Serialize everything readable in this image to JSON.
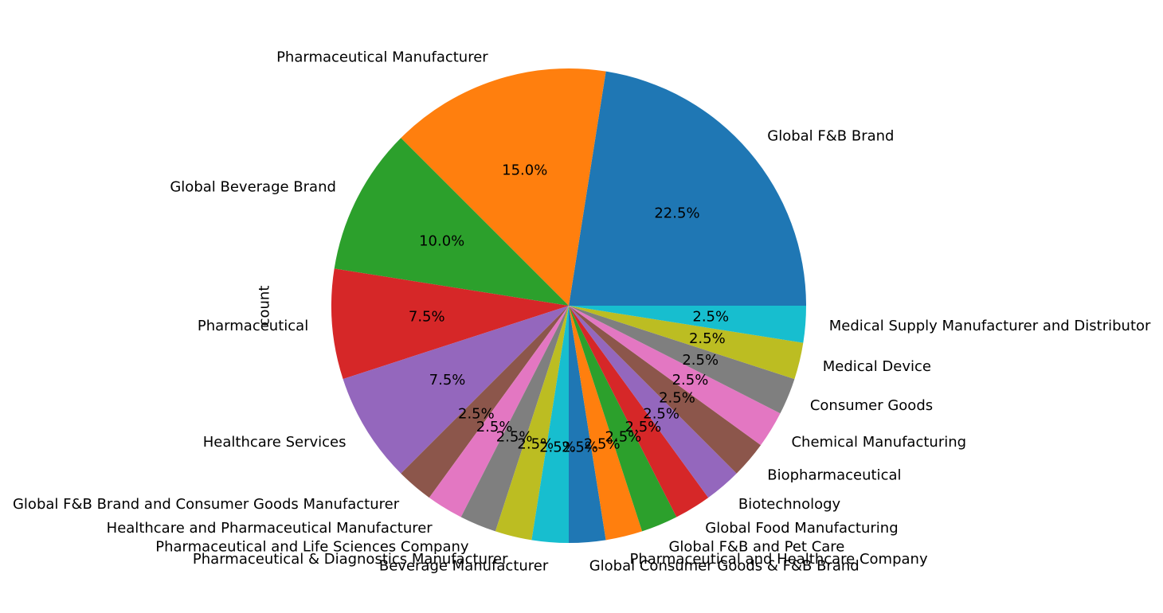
{
  "chart_data": {
    "type": "pie",
    "ylabel": "count",
    "start_angle_deg": 0,
    "direction": "counterclockwise",
    "slices": [
      {
        "label": "Global F&B Brand",
        "value": 22.5,
        "pct_text": "22.5%",
        "color": "#1f77b4"
      },
      {
        "label": "Pharmaceutical Manufacturer",
        "value": 15.0,
        "pct_text": "15.0%",
        "color": "#ff7f0e"
      },
      {
        "label": "Global Beverage Brand",
        "value": 10.0,
        "pct_text": "10.0%",
        "color": "#2ca02c"
      },
      {
        "label": "Pharmaceutical",
        "value": 7.5,
        "pct_text": "7.5%",
        "color": "#d62728"
      },
      {
        "label": "Healthcare Services",
        "value": 7.5,
        "pct_text": "7.5%",
        "color": "#9467bd"
      },
      {
        "label": "Global F&B Brand and Consumer Goods Manufacturer",
        "value": 2.5,
        "pct_text": "2.5%",
        "color": "#8c564b"
      },
      {
        "label": "Healthcare and Pharmaceutical Manufacturer",
        "value": 2.5,
        "pct_text": "2.5%",
        "color": "#e377c2"
      },
      {
        "label": "Pharmaceutical and Life Sciences Company",
        "value": 2.5,
        "pct_text": "2.5%",
        "color": "#7f7f7f"
      },
      {
        "label": "Pharmaceutical & Diagnostics Manufacturer",
        "value": 2.5,
        "pct_text": "2.5%",
        "color": "#bcbd22"
      },
      {
        "label": "Beverage Manufacturer",
        "value": 2.5,
        "pct_text": "2.5%",
        "color": "#17becf"
      },
      {
        "label": "Global Consumer Goods & F&B Brand",
        "value": 2.5,
        "pct_text": "2.5%",
        "color": "#1f77b4"
      },
      {
        "label": "Pharmaceutical and Healthcare Company",
        "value": 2.5,
        "pct_text": "2.5%",
        "color": "#ff7f0e"
      },
      {
        "label": "Global F&B and Pet Care",
        "value": 2.5,
        "pct_text": "2.5%",
        "color": "#2ca02c"
      },
      {
        "label": "Global Food Manufacturing",
        "value": 2.5,
        "pct_text": "2.5%",
        "color": "#d62728"
      },
      {
        "label": "Biotechnology",
        "value": 2.5,
        "pct_text": "2.5%",
        "color": "#9467bd"
      },
      {
        "label": "Biopharmaceutical",
        "value": 2.5,
        "pct_text": "2.5%",
        "color": "#8c564b"
      },
      {
        "label": "Chemical Manufacturing",
        "value": 2.5,
        "pct_text": "2.5%",
        "color": "#e377c2"
      },
      {
        "label": "Consumer Goods",
        "value": 2.5,
        "pct_text": "2.5%",
        "color": "#7f7f7f"
      },
      {
        "label": "Medical Device",
        "value": 2.5,
        "pct_text": "2.5%",
        "color": "#bcbd22"
      },
      {
        "label": "Medical Supply Manufacturer and Distributor",
        "value": 2.5,
        "pct_text": "2.5%",
        "color": "#17becf"
      }
    ]
  }
}
